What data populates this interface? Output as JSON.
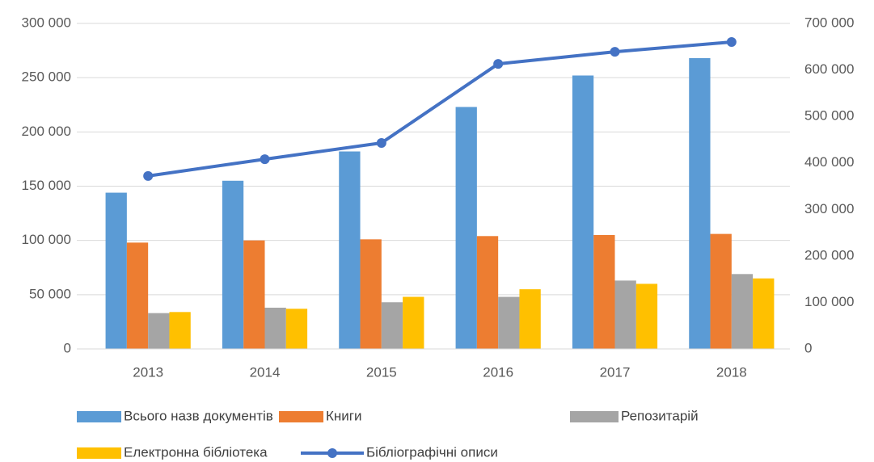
{
  "chart_data": {
    "type": "bar",
    "categories": [
      "2013",
      "2014",
      "2015",
      "2016",
      "2017",
      "2018"
    ],
    "series": [
      {
        "name": "Всього назв документів",
        "color": "#5b9bd5",
        "values": [
          144000,
          155000,
          182000,
          223000,
          252000,
          268000
        ]
      },
      {
        "name": "Книги",
        "color": "#ed7d31",
        "values": [
          98000,
          100000,
          101000,
          104000,
          105000,
          106000
        ]
      },
      {
        "name": "Репозитарій",
        "color": "#a5a5a5",
        "values": [
          33000,
          38000,
          43000,
          48000,
          63000,
          69000
        ]
      },
      {
        "name": "Електронна бібліотека",
        "color": "#ffc000",
        "values": [
          34000,
          37000,
          48000,
          55000,
          60000,
          65000
        ]
      },
      {
        "name": "Бібліографічні описи",
        "color": "#4472c4",
        "type": "line",
        "axis": "y2",
        "values": [
          372000,
          408000,
          443000,
          613000,
          639000,
          660000
        ]
      }
    ],
    "ylim": [
      0,
      300000
    ],
    "yticks": [
      0,
      {
        "value": 50000,
        "label": "50 000"
      },
      {
        "value": 100000,
        "label": "100 000"
      },
      {
        "value": 150000,
        "label": "150 000"
      },
      {
        "value": 200000,
        "label": "200 000"
      },
      {
        "value": 250000,
        "label": "250 000"
      },
      {
        "value": 300000,
        "label": "300 000"
      }
    ],
    "y2lim": [
      0,
      700000
    ],
    "y2ticks": [
      0,
      {
        "value": 100000,
        "label": "100 000"
      },
      {
        "value": 200000,
        "label": "200 000"
      },
      {
        "value": 300000,
        "label": "300 000"
      },
      {
        "value": 400000,
        "label": "400 000"
      },
      {
        "value": 500000,
        "label": "500 000"
      },
      {
        "value": 600000,
        "label": "600 000"
      },
      {
        "value": 700000,
        "label": "700 000"
      }
    ],
    "grid": true
  }
}
